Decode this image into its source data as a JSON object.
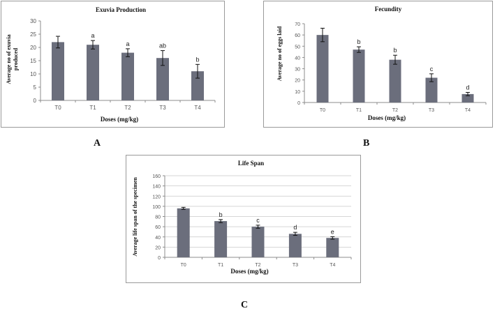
{
  "colors": {
    "bar": "#6b6e7c",
    "axis": "#8c8c8c",
    "grid": "#c8c8c8",
    "text": "#222222"
  },
  "panel_labels": {
    "a": "A",
    "b": "B",
    "c": "C"
  },
  "chart_data": [
    {
      "type": "bar",
      "title": "Exuvia Production",
      "xlabel": "Doses (mg/kg)",
      "ylabel": [
        "Average no of exuvia",
        "produced"
      ],
      "categories": [
        "T0",
        "T1",
        "T2",
        "T3",
        "T4"
      ],
      "values": [
        22,
        21,
        18,
        16,
        11
      ],
      "errors": [
        2.2,
        1.6,
        1.5,
        2.8,
        2.6
      ],
      "letters": [
        "",
        "a",
        "a",
        "ab",
        "b"
      ],
      "ylim": [
        0,
        30
      ],
      "yticks": [
        0,
        5,
        10,
        15,
        20,
        25,
        30
      ],
      "grid": false
    },
    {
      "type": "bar",
      "title": "Fecundity",
      "xlabel": "Doses (mg/kg)",
      "ylabel": [
        "Average no of eggs laid"
      ],
      "categories": [
        "T0",
        "T1",
        "T2",
        "T3",
        "T4"
      ],
      "values": [
        60,
        47,
        38,
        22,
        7.5
      ],
      "errors": [
        6,
        2.5,
        4,
        3.5,
        1.5
      ],
      "letters": [
        "",
        "b",
        "b",
        "c",
        "d"
      ],
      "ylim": [
        0,
        70
      ],
      "yticks": [
        0,
        10,
        20,
        30,
        40,
        50,
        60,
        70
      ],
      "grid": false
    },
    {
      "type": "bar",
      "title": "Life Span",
      "xlabel": "Doses (mg/kg)",
      "ylabel": [
        "Average life span of the specimen"
      ],
      "categories": [
        "T0",
        "T1",
        "T2",
        "T3",
        "T4"
      ],
      "values": [
        96,
        71,
        60,
        46,
        38
      ],
      "errors": [
        2,
        3,
        3,
        3,
        2.5
      ],
      "letters": [
        "",
        "b",
        "c",
        "d",
        "e"
      ],
      "ylim": [
        0,
        160
      ],
      "yticks": [
        0,
        20,
        40,
        60,
        80,
        100,
        120,
        140,
        160
      ],
      "grid": true
    }
  ]
}
